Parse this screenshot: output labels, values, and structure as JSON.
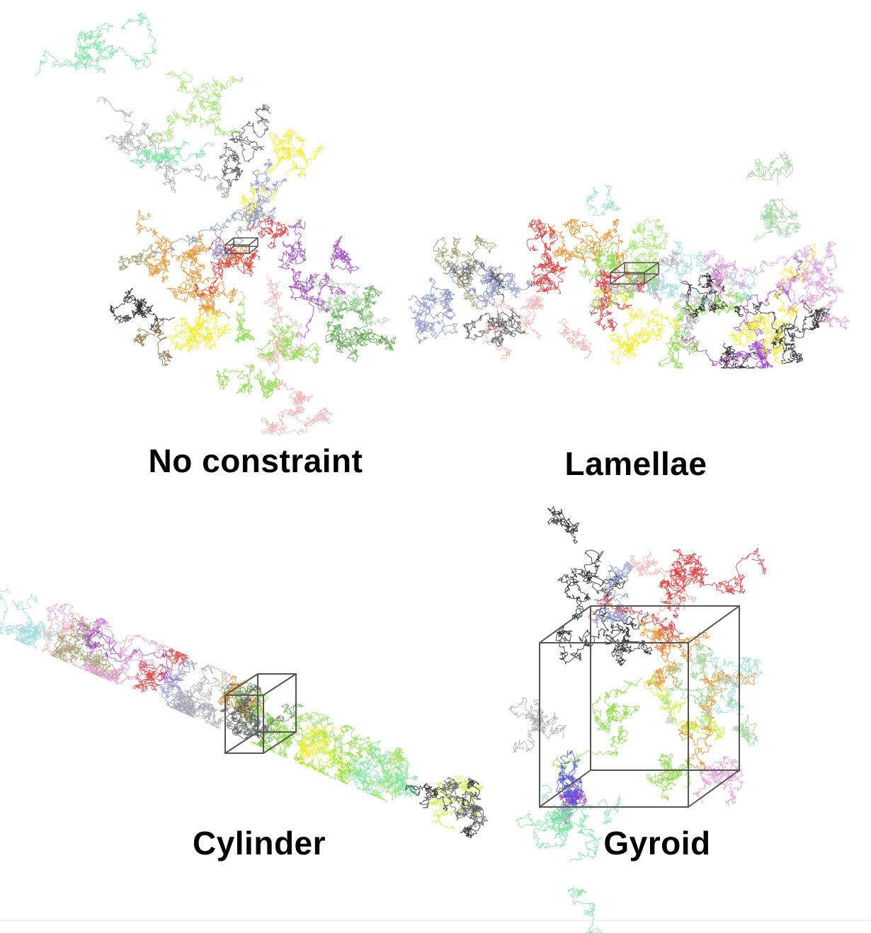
{
  "panels": {
    "no_constraint": {
      "label": "No constraint"
    },
    "lamellae": {
      "label": "Lamellae"
    },
    "cylinder": {
      "label": "Cylinder"
    },
    "gyroid": {
      "label": "Gyroid"
    }
  },
  "colors": {
    "box_outline": "#555555",
    "palette": [
      "#7be3a3",
      "#9ee36a",
      "#555555",
      "#a8a8a8",
      "#f2ea2a",
      "#8b94cc",
      "#e8902e",
      "#d93a3a",
      "#9c3fc2",
      "#f0b2b2",
      "#5aa44a",
      "#8fd94a",
      "#222222",
      "#9e9a6e",
      "#9fd39b",
      "#9ed9da",
      "#e09ad6",
      "#4b55e0",
      "#8b6a3c",
      "#c8ef3a"
    ]
  }
}
